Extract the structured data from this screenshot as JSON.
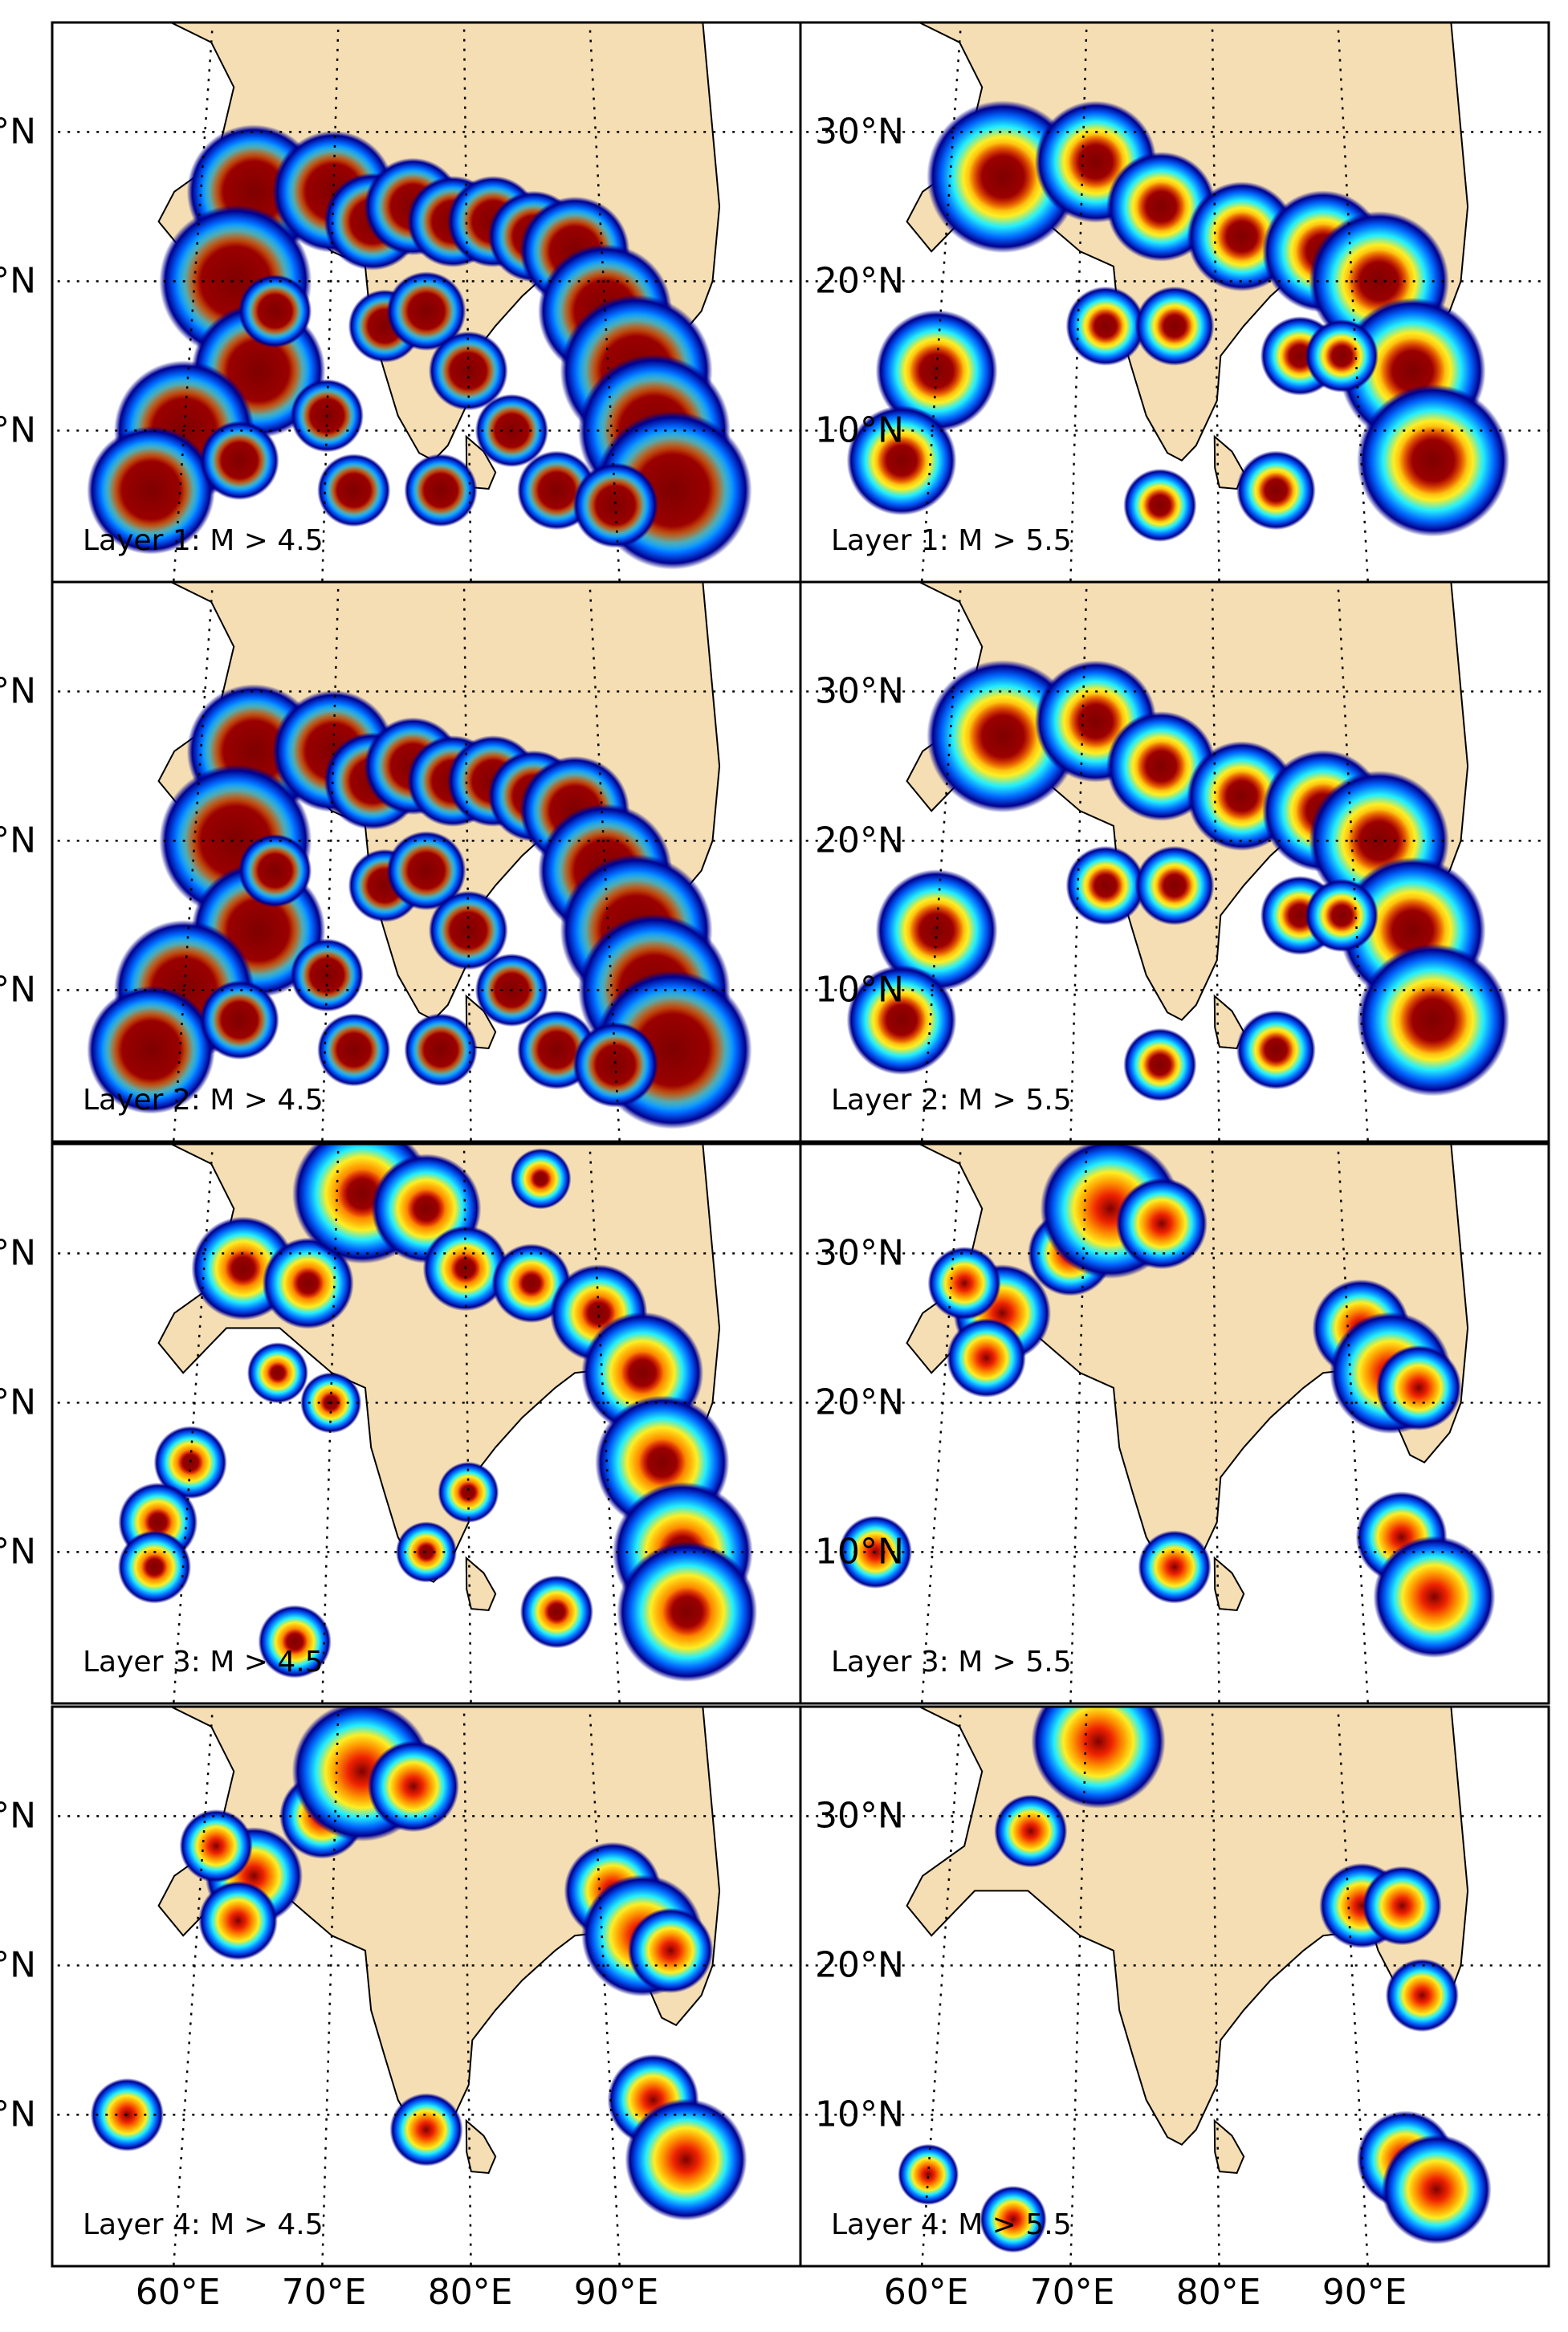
{
  "figure": {
    "lat_labels": [
      "30°N",
      "20°N",
      "10°N"
    ],
    "lon_labels": [
      "60°E",
      "70°E",
      "80°E",
      "90°E"
    ],
    "panels": [
      {
        "label": "Layer 1: M > 4.5",
        "layer": 1,
        "magnitude": 4.5,
        "intensity": "very high"
      },
      {
        "label": "Layer 1: M > 5.5",
        "layer": 1,
        "magnitude": 5.5,
        "intensity": "high"
      },
      {
        "label": "Layer 2: M > 4.5",
        "layer": 2,
        "magnitude": 4.5,
        "intensity": "very high"
      },
      {
        "label": "Layer 2: M > 5.5",
        "layer": 2,
        "magnitude": 5.5,
        "intensity": "high"
      },
      {
        "label": "Layer 3: M > 4.5",
        "layer": 3,
        "magnitude": 4.5,
        "intensity": "medium"
      },
      {
        "label": "Layer 3: M > 5.5",
        "layer": 3,
        "magnitude": 5.5,
        "intensity": "low"
      },
      {
        "label": "Layer 4: M > 4.5",
        "layer": 4,
        "magnitude": 4.5,
        "intensity": "low"
      },
      {
        "label": "Layer 4: M > 5.5",
        "layer": 4,
        "magnitude": 5.5,
        "intensity": "very low"
      }
    ],
    "colors": {
      "land": "#f5deb3",
      "ocean": "#ffffff",
      "colormap": "jet",
      "frame": "#000000"
    }
  }
}
